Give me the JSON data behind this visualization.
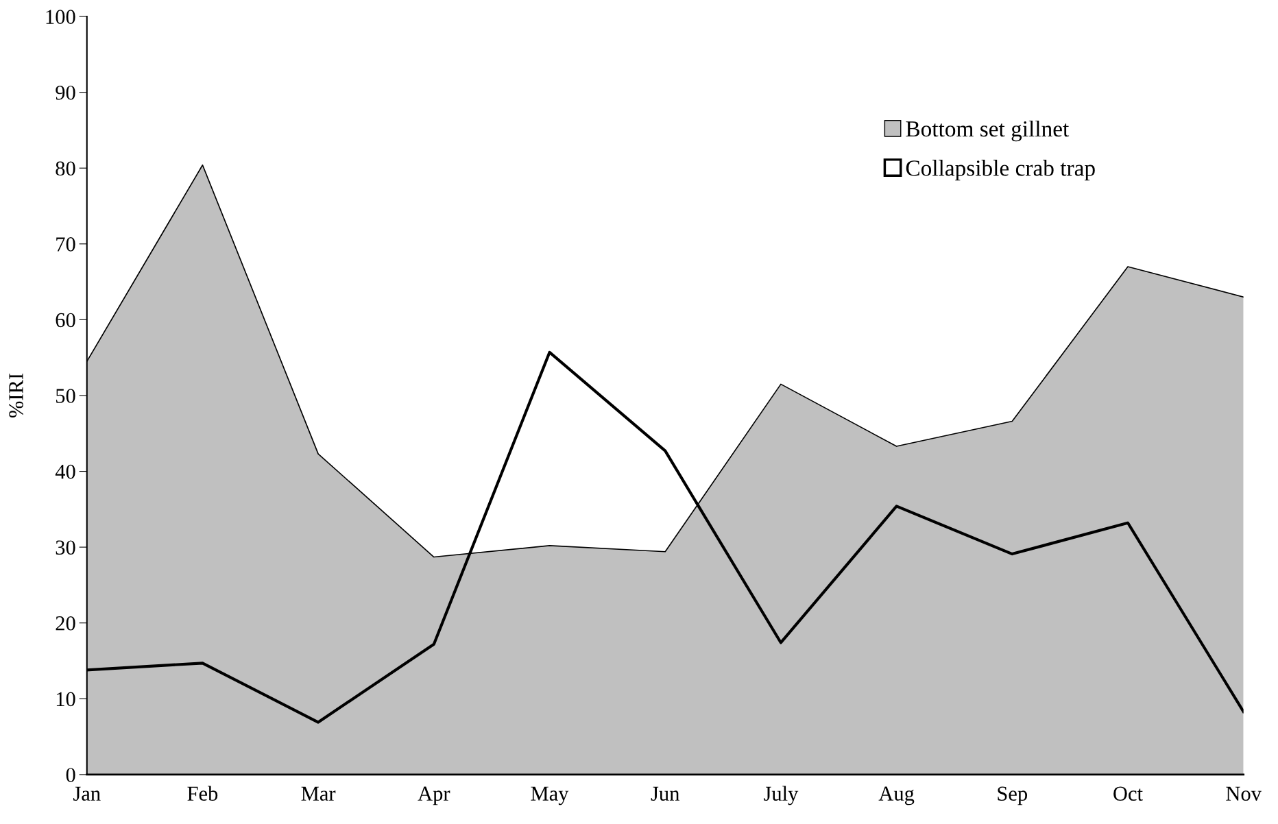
{
  "chart_data": {
    "type": "area",
    "ylabel": "%IRI",
    "categories": [
      "Jan",
      "Feb",
      "Mar",
      "Apr",
      "May",
      "Jun",
      "July",
      "Aug",
      "Sep",
      "Oct",
      "Nov"
    ],
    "series": [
      {
        "name": "Bottom set gillnet",
        "color": "#c0c0c0",
        "values": [
          54.5,
          80.4,
          42.3,
          28.7,
          30.2,
          29.4,
          51.5,
          43.3,
          46.6,
          67.0,
          63.0
        ]
      },
      {
        "name": "Collapsible crab trap",
        "type": "line",
        "color": "#000000",
        "values": [
          13.8,
          14.7,
          6.9,
          17.2,
          55.7,
          42.7,
          17.4,
          35.4,
          29.1,
          33.2,
          8.3
        ]
      }
    ],
    "ylim": [
      0,
      100
    ],
    "yticks": [
      0,
      10,
      20,
      30,
      40,
      50,
      60,
      70,
      80,
      90,
      100
    ],
    "grid": false,
    "legend": "top right"
  }
}
